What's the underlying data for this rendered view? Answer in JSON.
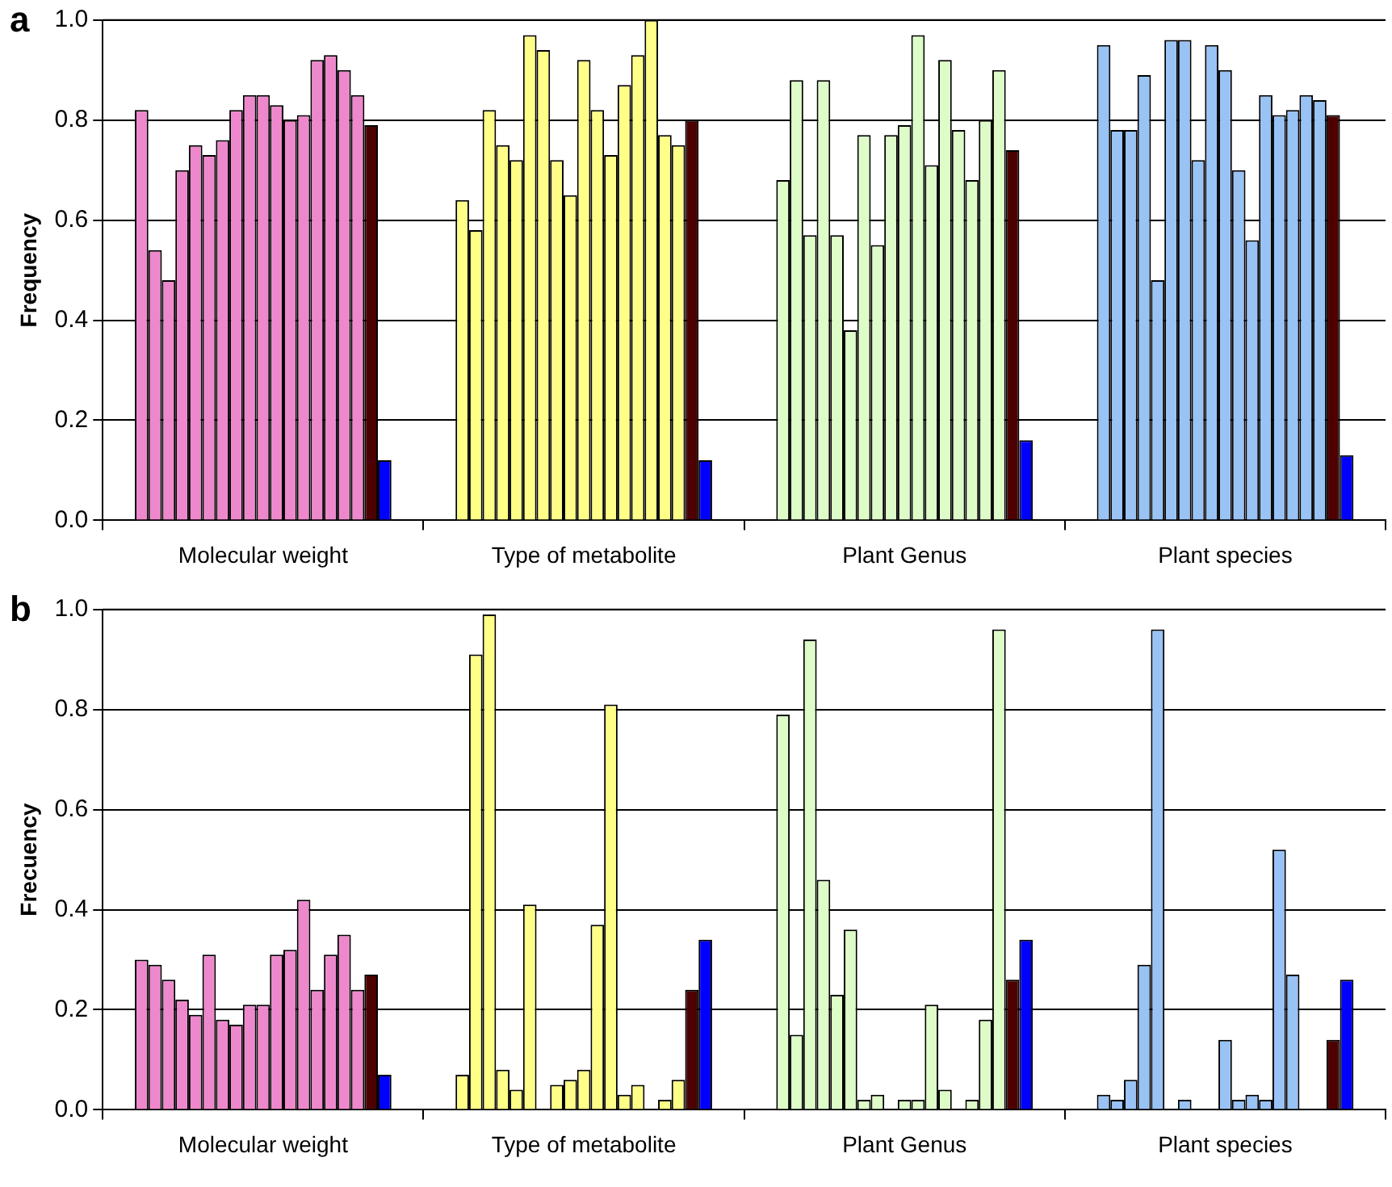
{
  "chart_data": [
    {
      "type": "bar",
      "title": "a",
      "ylabel": "Frequency",
      "categories": [
        "Molecular weight",
        "Type of metabolite",
        "Plant Genus",
        "Plant species"
      ],
      "ylim": [
        0,
        1
      ],
      "yticks": [
        {
          "value": 0,
          "label": "0.0"
        },
        {
          "value": 0.2,
          "label": "0.2"
        },
        {
          "value": 0.4,
          "label": "0.4"
        },
        {
          "value": 0.6,
          "label": "0.6"
        },
        {
          "value": 0.8,
          "label": "0.8"
        },
        {
          "value": 1,
          "label": "1.0"
        }
      ],
      "grid": "y",
      "series": [
        {
          "colors": [
            "#ee88cc",
            "#ffff88",
            "#ddfcc8",
            "#99c2f5"
          ],
          "values": [
            0.82,
            0.64,
            0.68,
            0.95
          ]
        },
        {
          "colors": [
            "#ee88cc",
            "#ffff88",
            "#ddfcc8",
            "#99c2f5"
          ],
          "values": [
            0.54,
            0.58,
            0.88,
            0.78
          ]
        },
        {
          "colors": [
            "#ee88cc",
            "#ffff88",
            "#ddfcc8",
            "#99c2f5"
          ],
          "values": [
            0.48,
            0.82,
            0.57,
            0.78
          ]
        },
        {
          "colors": [
            "#ee88cc",
            "#ffff88",
            "#ddfcc8",
            "#99c2f5"
          ],
          "values": [
            0.7,
            0.75,
            0.88,
            0.89
          ]
        },
        {
          "colors": [
            "#ee88cc",
            "#ffff88",
            "#ddfcc8",
            "#99c2f5"
          ],
          "values": [
            0.75,
            0.72,
            0.57,
            0.48
          ]
        },
        {
          "colors": [
            "#ee88cc",
            "#ffff88",
            "#ddfcc8",
            "#99c2f5"
          ],
          "values": [
            0.73,
            0.97,
            0.38,
            0.96
          ]
        },
        {
          "colors": [
            "#ee88cc",
            "#ffff88",
            "#ddfcc8",
            "#99c2f5"
          ],
          "values": [
            0.76,
            0.94,
            0.77,
            0.96
          ]
        },
        {
          "colors": [
            "#ee88cc",
            "#ffff88",
            "#ddfcc8",
            "#99c2f5"
          ],
          "values": [
            0.82,
            0.72,
            0.55,
            0.72
          ]
        },
        {
          "colors": [
            "#ee88cc",
            "#ffff88",
            "#ddfcc8",
            "#99c2f5"
          ],
          "values": [
            0.85,
            0.65,
            0.77,
            0.95
          ]
        },
        {
          "colors": [
            "#ee88cc",
            "#ffff88",
            "#ddfcc8",
            "#99c2f5"
          ],
          "values": [
            0.85,
            0.92,
            0.79,
            0.9
          ]
        },
        {
          "colors": [
            "#ee88cc",
            "#ffff88",
            "#ddfcc8",
            "#99c2f5"
          ],
          "values": [
            0.83,
            0.82,
            0.97,
            0.7
          ]
        },
        {
          "colors": [
            "#ee88cc",
            "#ffff88",
            "#ddfcc8",
            "#99c2f5"
          ],
          "values": [
            0.8,
            0.73,
            0.71,
            0.56
          ]
        },
        {
          "colors": [
            "#ee88cc",
            "#ffff88",
            "#ddfcc8",
            "#99c2f5"
          ],
          "values": [
            0.81,
            0.87,
            0.92,
            0.85
          ]
        },
        {
          "colors": [
            "#ee88cc",
            "#ffff88",
            "#ddfcc8",
            "#99c2f5"
          ],
          "values": [
            0.92,
            0.93,
            0.78,
            0.81
          ]
        },
        {
          "colors": [
            "#ee88cc",
            "#ffff88",
            "#ddfcc8",
            "#99c2f5"
          ],
          "values": [
            0.93,
            1.0,
            0.68,
            0.82
          ]
        },
        {
          "colors": [
            "#ee88cc",
            "#ffff88",
            "#ddfcc8",
            "#99c2f5"
          ],
          "values": [
            0.9,
            0.77,
            0.8,
            0.85
          ]
        },
        {
          "colors": [
            "#ee88cc",
            "#ffff88",
            "#ddfcc8",
            "#99c2f5"
          ],
          "values": [
            0.85,
            0.75,
            0.9,
            0.84
          ]
        },
        {
          "color": "#4d0000",
          "values": [
            0.79,
            0.8,
            0.74,
            0.81
          ]
        },
        {
          "color": "#0000ff",
          "values": [
            0.12,
            0.12,
            0.16,
            0.13
          ]
        }
      ]
    },
    {
      "type": "bar",
      "title": "b",
      "ylabel": "Frecuency",
      "categories": [
        "Molecular weight",
        "Type of metabolite",
        "Plant Genus",
        "Plant species"
      ],
      "ylim": [
        0,
        1
      ],
      "yticks": [
        {
          "value": 0,
          "label": "0.0"
        },
        {
          "value": 0.2,
          "label": "0.2"
        },
        {
          "value": 0.4,
          "label": "0.4"
        },
        {
          "value": 0.6,
          "label": "0.6"
        },
        {
          "value": 0.8,
          "label": "0.8"
        },
        {
          "value": 1,
          "label": "1.0"
        }
      ],
      "grid": "y",
      "series": [
        {
          "colors": [
            "#ee88cc",
            "#ffff88",
            "#ddfcc8",
            "#99c2f5"
          ],
          "values": [
            0.3,
            0.07,
            0.79,
            0.03
          ]
        },
        {
          "colors": [
            "#ee88cc",
            "#ffff88",
            "#ddfcc8",
            "#99c2f5"
          ],
          "values": [
            0.29,
            0.91,
            0.15,
            0.02
          ]
        },
        {
          "colors": [
            "#ee88cc",
            "#ffff88",
            "#ddfcc8",
            "#99c2f5"
          ],
          "values": [
            0.26,
            0.99,
            0.94,
            0.06
          ]
        },
        {
          "colors": [
            "#ee88cc",
            "#ffff88",
            "#ddfcc8",
            "#99c2f5"
          ],
          "values": [
            0.22,
            0.08,
            0.46,
            0.29
          ]
        },
        {
          "colors": [
            "#ee88cc",
            "#ffff88",
            "#ddfcc8",
            "#99c2f5"
          ],
          "values": [
            0.19,
            0.04,
            0.23,
            0.96
          ]
        },
        {
          "colors": [
            "#ee88cc",
            "#ffff88",
            "#ddfcc8",
            "#99c2f5"
          ],
          "values": [
            0.31,
            0.41,
            0.36,
            null
          ]
        },
        {
          "colors": [
            "#ee88cc",
            "#ffff88",
            "#ddfcc8",
            "#99c2f5"
          ],
          "values": [
            0.18,
            null,
            0.02,
            0.02
          ]
        },
        {
          "colors": [
            "#ee88cc",
            "#ffff88",
            "#ddfcc8",
            "#99c2f5"
          ],
          "values": [
            0.17,
            0.05,
            0.03,
            null
          ]
        },
        {
          "colors": [
            "#ee88cc",
            "#ffff88",
            "#ddfcc8",
            "#99c2f5"
          ],
          "values": [
            0.21,
            0.06,
            null,
            null
          ]
        },
        {
          "colors": [
            "#ee88cc",
            "#ffff88",
            "#ddfcc8",
            "#99c2f5"
          ],
          "values": [
            0.21,
            0.08,
            0.02,
            0.14
          ]
        },
        {
          "colors": [
            "#ee88cc",
            "#ffff88",
            "#ddfcc8",
            "#99c2f5"
          ],
          "values": [
            0.31,
            0.37,
            0.02,
            0.02
          ]
        },
        {
          "colors": [
            "#ee88cc",
            "#ffff88",
            "#ddfcc8",
            "#99c2f5"
          ],
          "values": [
            0.32,
            0.81,
            0.21,
            0.03
          ]
        },
        {
          "colors": [
            "#ee88cc",
            "#ffff88",
            "#ddfcc8",
            "#99c2f5"
          ],
          "values": [
            0.42,
            0.03,
            0.04,
            0.02
          ]
        },
        {
          "colors": [
            "#ee88cc",
            "#ffff88",
            "#ddfcc8",
            "#99c2f5"
          ],
          "values": [
            0.24,
            0.05,
            null,
            0.52
          ]
        },
        {
          "colors": [
            "#ee88cc",
            "#ffff88",
            "#ddfcc8",
            "#99c2f5"
          ],
          "values": [
            0.31,
            null,
            0.02,
            0.27
          ]
        },
        {
          "colors": [
            "#ee88cc",
            "#ffff88",
            "#ddfcc8",
            "#99c2f5"
          ],
          "values": [
            0.35,
            0.02,
            0.18,
            null
          ]
        },
        {
          "colors": [
            "#ee88cc",
            "#ffff88",
            "#ddfcc8",
            "#99c2f5"
          ],
          "values": [
            0.24,
            0.06,
            0.96,
            null
          ]
        },
        {
          "color": "#4d0000",
          "values": [
            0.27,
            0.24,
            0.26,
            0.14
          ]
        },
        {
          "color": "#0000ff",
          "values": [
            0.07,
            0.34,
            0.34,
            0.26
          ]
        }
      ]
    }
  ]
}
